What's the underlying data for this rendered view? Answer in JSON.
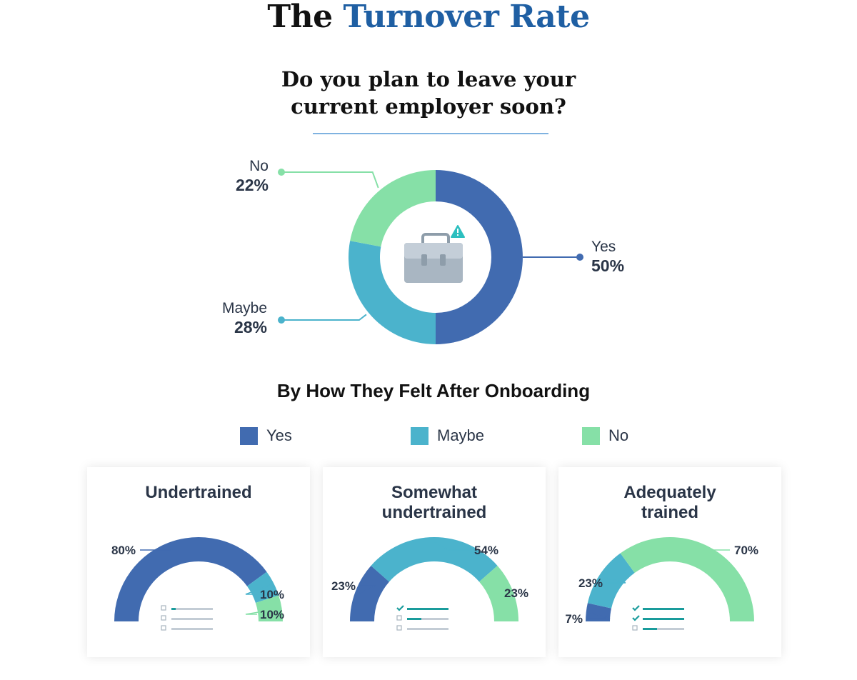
{
  "header": {
    "title_part1": "The",
    "title_part2": "Turnover Rate"
  },
  "question": {
    "line1": "Do you plan to leave your",
    "line2": "current employer soon?"
  },
  "colors": {
    "yes": "#416bb0",
    "maybe": "#4bb3cc",
    "no": "#86e0a7",
    "title_accent": "#1f5fa3",
    "icon": "briefcase-icon",
    "warning": "#2cbfbf"
  },
  "chart_data": [
    {
      "type": "pie",
      "variant": "donut",
      "title": "Do you plan to leave your current employer soon?",
      "slices": [
        {
          "label": "Yes",
          "value": 50,
          "display": "50%"
        },
        {
          "label": "Maybe",
          "value": 28,
          "display": "28%"
        },
        {
          "label": "No",
          "value": 22,
          "display": "22%"
        }
      ]
    },
    {
      "type": "pie",
      "variant": "semi-donut",
      "title": "Undertrained",
      "slices": [
        {
          "label": "Yes",
          "value": 80,
          "display": "80%"
        },
        {
          "label": "Maybe",
          "value": 10,
          "display": "10%"
        },
        {
          "label": "No",
          "value": 10,
          "display": "10%"
        }
      ]
    },
    {
      "type": "pie",
      "variant": "semi-donut",
      "title": "Somewhat undertrained",
      "slices": [
        {
          "label": "Yes",
          "value": 23,
          "display": "23%"
        },
        {
          "label": "Maybe",
          "value": 54,
          "display": "54%"
        },
        {
          "label": "No",
          "value": 23,
          "display": "23%"
        }
      ]
    },
    {
      "type": "pie",
      "variant": "semi-donut",
      "title": "Adequately trained",
      "slices": [
        {
          "label": "Yes",
          "value": 7,
          "display": "7%"
        },
        {
          "label": "Maybe",
          "value": 23,
          "display": "23%"
        },
        {
          "label": "No",
          "value": 70,
          "display": "70%"
        }
      ]
    }
  ],
  "subheading": "By How They Felt After Onboarding",
  "legend": [
    {
      "label": "Yes",
      "color": "#416bb0"
    },
    {
      "label": "Maybe",
      "color": "#4bb3cc"
    },
    {
      "label": "No",
      "color": "#86e0a7"
    }
  ],
  "cards": [
    {
      "title_line1": "Undertrained",
      "title_line2": "",
      "checks": 0
    },
    {
      "title_line1": "Somewhat",
      "title_line2": "undertrained",
      "checks": 1
    },
    {
      "title_line1": "Adequately",
      "title_line2": "trained",
      "checks": 2
    }
  ]
}
